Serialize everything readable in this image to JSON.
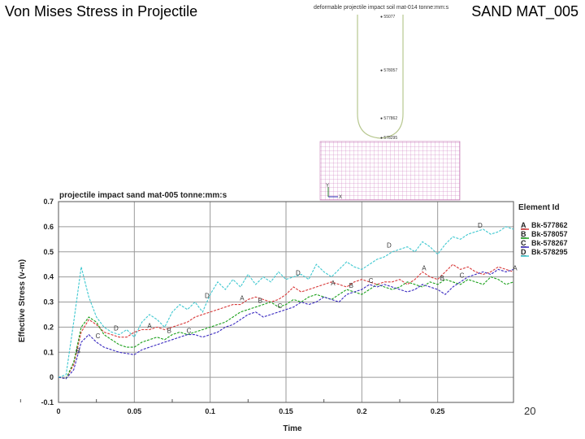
{
  "slide": {
    "title": "Von Mises Stress in Projectile",
    "right_label": "SAND MAT_005",
    "page_number": "20"
  },
  "inset": {
    "title": "deformable projectile impact soil mat-014 tonne:mm:s",
    "node_labels": [
      "● 55077",
      "● 578057",
      "● 577862",
      "● 578295"
    ],
    "axis_y": "Y",
    "axis_x": "X"
  },
  "chart_data": {
    "type": "line",
    "title": "projectile impact sand mat-005 tonne:mm:s",
    "xlabel": "Time",
    "ylabel": "Effective Stress (v-m)",
    "xlim": [
      0,
      0.3
    ],
    "ylim": [
      -0.1,
      0.7
    ],
    "xticks": [
      0,
      0.05,
      0.1,
      0.15,
      0.2,
      0.25
    ],
    "xtick_labels": [
      "0",
      "0.05",
      "0.1",
      "0.15",
      "0.2",
      "0.25"
    ],
    "yticks": [
      -0.1,
      0,
      0.1,
      0.2,
      0.3,
      0.4,
      0.5,
      0.6,
      0.7
    ],
    "ytick_labels": [
      "-0.1",
      "0",
      "0.1",
      "0.2",
      "0.3",
      "0.4",
      "0.5",
      "0.6",
      "0.7"
    ],
    "grid": true,
    "legend_title": "Element Id",
    "legend_position": "right",
    "series": [
      {
        "marker": "A",
        "name": "Bk-577862",
        "color": "#d83a3a",
        "x": [
          0,
          0.005,
          0.01,
          0.015,
          0.02,
          0.025,
          0.03,
          0.035,
          0.04,
          0.045,
          0.05,
          0.055,
          0.06,
          0.065,
          0.07,
          0.075,
          0.08,
          0.085,
          0.09,
          0.095,
          0.1,
          0.105,
          0.11,
          0.115,
          0.12,
          0.125,
          0.13,
          0.135,
          0.14,
          0.145,
          0.15,
          0.155,
          0.16,
          0.165,
          0.17,
          0.175,
          0.18,
          0.185,
          0.19,
          0.195,
          0.2,
          0.205,
          0.21,
          0.215,
          0.22,
          0.225,
          0.23,
          0.235,
          0.24,
          0.245,
          0.25,
          0.255,
          0.26,
          0.265,
          0.27,
          0.275,
          0.28,
          0.285,
          0.29,
          0.295,
          0.3
        ],
        "y": [
          0,
          -0.005,
          0.05,
          0.18,
          0.23,
          0.21,
          0.18,
          0.17,
          0.16,
          0.16,
          0.18,
          0.19,
          0.19,
          0.2,
          0.19,
          0.2,
          0.21,
          0.22,
          0.24,
          0.25,
          0.26,
          0.27,
          0.28,
          0.29,
          0.29,
          0.31,
          0.32,
          0.31,
          0.3,
          0.31,
          0.33,
          0.36,
          0.34,
          0.35,
          0.36,
          0.37,
          0.38,
          0.37,
          0.36,
          0.38,
          0.39,
          0.38,
          0.37,
          0.38,
          0.38,
          0.39,
          0.37,
          0.39,
          0.42,
          0.4,
          0.39,
          0.42,
          0.45,
          0.43,
          0.44,
          0.42,
          0.41,
          0.42,
          0.44,
          0.43,
          0.42
        ]
      },
      {
        "marker": "B",
        "name": "Bk-578057",
        "color": "#1aa01a",
        "x": [
          0,
          0.005,
          0.01,
          0.015,
          0.02,
          0.025,
          0.03,
          0.035,
          0.04,
          0.045,
          0.05,
          0.055,
          0.06,
          0.065,
          0.07,
          0.075,
          0.08,
          0.085,
          0.09,
          0.095,
          0.1,
          0.105,
          0.11,
          0.115,
          0.12,
          0.125,
          0.13,
          0.135,
          0.14,
          0.145,
          0.15,
          0.155,
          0.16,
          0.165,
          0.17,
          0.175,
          0.18,
          0.185,
          0.19,
          0.195,
          0.2,
          0.205,
          0.21,
          0.215,
          0.22,
          0.225,
          0.23,
          0.235,
          0.24,
          0.245,
          0.25,
          0.255,
          0.26,
          0.265,
          0.27,
          0.275,
          0.28,
          0.285,
          0.29,
          0.295,
          0.3
        ],
        "y": [
          0,
          -0.005,
          0.06,
          0.2,
          0.24,
          0.22,
          0.17,
          0.15,
          0.13,
          0.12,
          0.12,
          0.14,
          0.15,
          0.16,
          0.15,
          0.17,
          0.18,
          0.17,
          0.18,
          0.19,
          0.2,
          0.21,
          0.22,
          0.24,
          0.26,
          0.27,
          0.28,
          0.29,
          0.3,
          0.28,
          0.29,
          0.31,
          0.3,
          0.32,
          0.33,
          0.32,
          0.31,
          0.33,
          0.35,
          0.34,
          0.33,
          0.35,
          0.37,
          0.36,
          0.35,
          0.36,
          0.38,
          0.37,
          0.36,
          0.38,
          0.37,
          0.39,
          0.38,
          0.37,
          0.39,
          0.38,
          0.37,
          0.4,
          0.39,
          0.37,
          0.38
        ]
      },
      {
        "marker": "C",
        "name": "Bk-578267",
        "color": "#3a2ac0",
        "x": [
          0,
          0.005,
          0.01,
          0.015,
          0.02,
          0.025,
          0.03,
          0.035,
          0.04,
          0.045,
          0.05,
          0.055,
          0.06,
          0.065,
          0.07,
          0.075,
          0.08,
          0.085,
          0.09,
          0.095,
          0.1,
          0.105,
          0.11,
          0.115,
          0.12,
          0.125,
          0.13,
          0.135,
          0.14,
          0.145,
          0.15,
          0.155,
          0.16,
          0.165,
          0.17,
          0.175,
          0.18,
          0.185,
          0.19,
          0.195,
          0.2,
          0.205,
          0.21,
          0.215,
          0.22,
          0.225,
          0.23,
          0.235,
          0.24,
          0.245,
          0.25,
          0.255,
          0.26,
          0.265,
          0.27,
          0.275,
          0.28,
          0.285,
          0.29,
          0.295,
          0.3
        ],
        "y": [
          0,
          -0.005,
          0.03,
          0.14,
          0.17,
          0.14,
          0.12,
          0.11,
          0.1,
          0.095,
          0.09,
          0.11,
          0.12,
          0.13,
          0.14,
          0.15,
          0.16,
          0.17,
          0.17,
          0.16,
          0.17,
          0.18,
          0.2,
          0.21,
          0.23,
          0.25,
          0.26,
          0.24,
          0.25,
          0.26,
          0.27,
          0.28,
          0.3,
          0.29,
          0.3,
          0.32,
          0.31,
          0.3,
          0.33,
          0.34,
          0.35,
          0.37,
          0.36,
          0.37,
          0.36,
          0.35,
          0.34,
          0.35,
          0.37,
          0.36,
          0.35,
          0.33,
          0.36,
          0.38,
          0.4,
          0.41,
          0.42,
          0.41,
          0.43,
          0.42,
          0.43
        ]
      },
      {
        "marker": "D",
        "name": "Bk-578295",
        "color": "#3ec8d0",
        "x": [
          0,
          0.005,
          0.01,
          0.015,
          0.02,
          0.025,
          0.03,
          0.035,
          0.04,
          0.045,
          0.05,
          0.055,
          0.06,
          0.065,
          0.07,
          0.075,
          0.08,
          0.085,
          0.09,
          0.095,
          0.1,
          0.105,
          0.11,
          0.115,
          0.12,
          0.125,
          0.13,
          0.135,
          0.14,
          0.145,
          0.15,
          0.155,
          0.16,
          0.165,
          0.17,
          0.175,
          0.18,
          0.185,
          0.19,
          0.195,
          0.2,
          0.205,
          0.21,
          0.215,
          0.22,
          0.225,
          0.23,
          0.235,
          0.24,
          0.245,
          0.25,
          0.255,
          0.26,
          0.265,
          0.27,
          0.275,
          0.28,
          0.285,
          0.29,
          0.295,
          0.3
        ],
        "y": [
          0,
          0.01,
          0.22,
          0.44,
          0.32,
          0.24,
          0.2,
          0.18,
          0.17,
          0.19,
          0.16,
          0.22,
          0.25,
          0.23,
          0.2,
          0.26,
          0.29,
          0.27,
          0.3,
          0.26,
          0.33,
          0.38,
          0.35,
          0.39,
          0.36,
          0.41,
          0.37,
          0.4,
          0.38,
          0.42,
          0.39,
          0.4,
          0.41,
          0.39,
          0.45,
          0.42,
          0.4,
          0.43,
          0.46,
          0.44,
          0.43,
          0.45,
          0.47,
          0.48,
          0.5,
          0.51,
          0.52,
          0.5,
          0.54,
          0.52,
          0.49,
          0.53,
          0.56,
          0.55,
          0.57,
          0.58,
          0.59,
          0.57,
          0.58,
          0.6,
          0.59
        ]
      }
    ],
    "point_labels": [
      {
        "series": 0,
        "x": 0.06,
        "y": 0.19
      },
      {
        "series": 0,
        "x": 0.121,
        "y": 0.3
      },
      {
        "series": 0,
        "x": 0.181,
        "y": 0.36
      },
      {
        "series": 0,
        "x": 0.241,
        "y": 0.42
      },
      {
        "series": 0,
        "x": 0.301,
        "y": 0.42
      },
      {
        "series": 1,
        "x": 0.013,
        "y": 0.09
      },
      {
        "series": 1,
        "x": 0.073,
        "y": 0.17
      },
      {
        "series": 1,
        "x": 0.133,
        "y": 0.29
      },
      {
        "series": 1,
        "x": 0.193,
        "y": 0.35
      },
      {
        "series": 1,
        "x": 0.253,
        "y": 0.38
      },
      {
        "series": 2,
        "x": 0.026,
        "y": 0.15
      },
      {
        "series": 2,
        "x": 0.086,
        "y": 0.17
      },
      {
        "series": 2,
        "x": 0.146,
        "y": 0.27
      },
      {
        "series": 2,
        "x": 0.206,
        "y": 0.37
      },
      {
        "series": 2,
        "x": 0.266,
        "y": 0.39
      },
      {
        "series": 3,
        "x": 0.038,
        "y": 0.18
      },
      {
        "series": 3,
        "x": 0.098,
        "y": 0.31
      },
      {
        "series": 3,
        "x": 0.158,
        "y": 0.4
      },
      {
        "series": 3,
        "x": 0.218,
        "y": 0.51
      },
      {
        "series": 3,
        "x": 0.278,
        "y": 0.59
      }
    ]
  }
}
